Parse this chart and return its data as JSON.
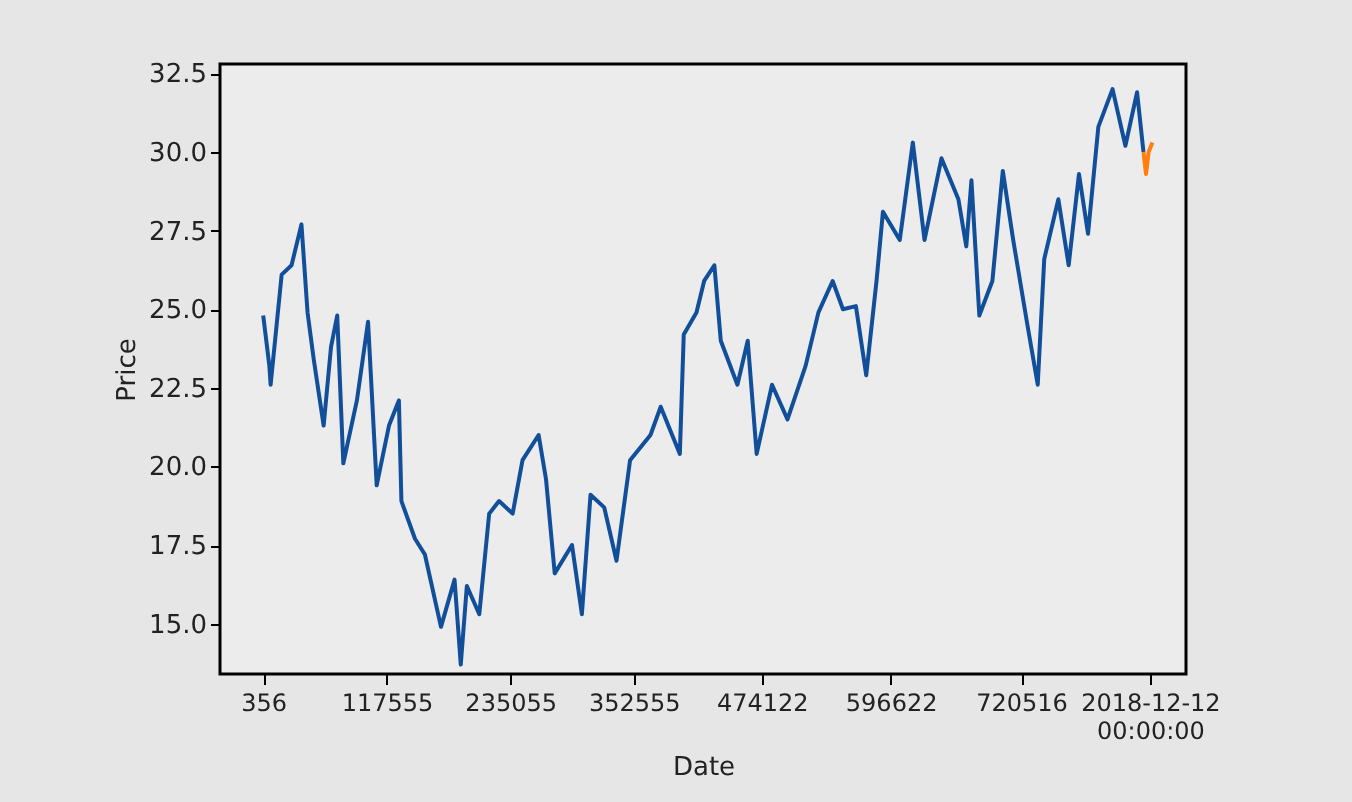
{
  "chart_data": {
    "type": "line",
    "xlabel": "Date",
    "ylabel": "Price",
    "xlim": [
      -40700,
      877300
    ],
    "ylim": [
      13.4,
      32.8
    ],
    "xticks": [
      356,
      117555,
      235055,
      352555,
      474122,
      596622,
      720516,
      {
        "value": 843000,
        "label": "2018-12-12 00:00:00"
      }
    ],
    "yticks": [
      {
        "value": 15,
        "label": "15.0"
      },
      {
        "value": 17.5,
        "label": "17.5"
      },
      {
        "value": 20,
        "label": "20.0"
      },
      {
        "value": 22.5,
        "label": "22.5"
      },
      {
        "value": 25,
        "label": "25.0"
      },
      {
        "value": 27.5,
        "label": "27.5"
      },
      {
        "value": 30,
        "label": "30.0"
      },
      {
        "value": 32.5,
        "label": "32.5"
      }
    ],
    "grid": false,
    "marker": "none",
    "line_style": "solid",
    "series": [
      {
        "color": "#124f9b",
        "x": [
          356,
          6200,
          7400,
          17900,
          27300,
          36700,
          42500,
          48400,
          57800,
          64800,
          70700,
          76500,
          89400,
          100000,
          108200,
          119900,
          129300,
          131700,
          144600,
          154000,
          169300,
          182200,
          188100,
          193900,
          205700,
          215100,
          224500,
          237400,
          246800,
          262100,
          269100,
          277400,
          293800,
          303200,
          311400,
          324400,
          336100,
          349000,
          368400,
          378100,
          396300,
          400000,
          412100,
          419400,
          429100,
          435200,
          451000,
          460800,
          469300,
          483900,
          498600,
          515800,
          528000,
          541500,
          551300,
          563600,
          573400,
          583200,
          589300,
          605300,
          617700,
          628800,
          644900,
          661000,
          668500,
          673400,
          680900,
          693300,
          703200,
          713100,
          726600,
          736400,
          742600,
          756000,
          765800,
          775600,
          784200,
          794000,
          807500,
          819700,
          830800,
          836900
        ],
        "values": [
          24.8,
          23.2,
          22.6,
          26.1,
          26.4,
          27.7,
          24.9,
          23.4,
          21.3,
          23.8,
          24.8,
          20.1,
          22.1,
          24.6,
          19.4,
          21.3,
          22.1,
          18.9,
          17.7,
          17.2,
          14.9,
          16.4,
          13.7,
          16.2,
          15.3,
          18.5,
          18.9,
          18.5,
          20.2,
          21.0,
          19.6,
          16.6,
          17.5,
          15.3,
          19.1,
          18.7,
          17.0,
          20.2,
          21.0,
          21.9,
          20.4,
          24.2,
          24.9,
          25.9,
          26.4,
          24.0,
          22.6,
          24.0,
          20.4,
          22.6,
          21.5,
          23.2,
          24.9,
          25.9,
          25.0,
          25.1,
          22.9,
          25.9,
          28.1,
          27.2,
          30.3,
          27.2,
          29.8,
          28.5,
          27.0,
          29.1,
          24.8,
          25.9,
          29.4,
          27.2,
          24.5,
          22.6,
          26.6,
          28.5,
          26.4,
          29.3,
          27.4,
          30.8,
          32.0,
          30.2,
          31.9,
          30.0
        ]
      },
      {
        "color": "#ff7f0e",
        "x": [
          836900,
          839300,
          841800,
          845400
        ],
        "values": [
          30.0,
          29.3,
          30.0,
          30.3
        ]
      }
    ]
  }
}
